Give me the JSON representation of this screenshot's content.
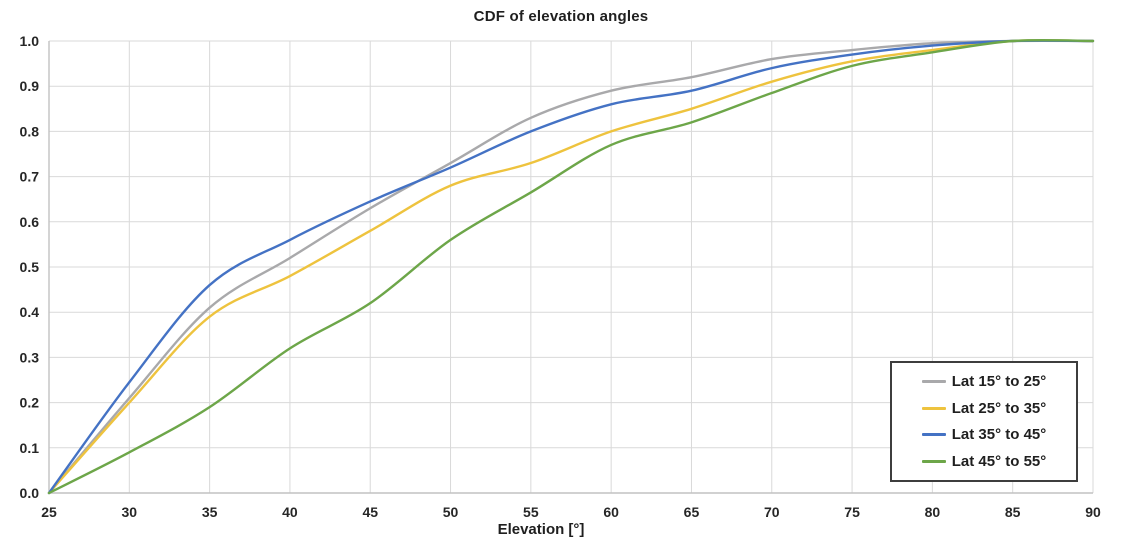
{
  "figure": {
    "title": "CDF of elevation angles",
    "x_axis_label": "Elevation [°]"
  },
  "chart_data": {
    "type": "line",
    "title": "CDF of elevation angles",
    "xlabel": "Elevation [°]",
    "ylabel": "",
    "xlim": [
      25,
      90
    ],
    "ylim": [
      0.0,
      1.0
    ],
    "x_tick_labels": [
      "25",
      "30",
      "35",
      "40",
      "45",
      "50",
      "55",
      "60",
      "65",
      "70",
      "75",
      "80",
      "85",
      "90"
    ],
    "y_tick_labels": [
      "0.0",
      "0.1",
      "0.2",
      "0.3",
      "0.4",
      "0.5",
      "0.6",
      "0.7",
      "0.8",
      "0.9",
      "1.0"
    ],
    "grid": true,
    "legend_position": "inset lower right",
    "x": [
      25,
      30,
      35,
      40,
      45,
      50,
      55,
      60,
      65,
      70,
      75,
      80,
      85,
      90
    ],
    "series": [
      {
        "name": "Lat 15° to 25°",
        "color": "#a9a9ab",
        "values": [
          0,
          0.21,
          0.41,
          0.52,
          0.63,
          0.73,
          0.83,
          0.89,
          0.92,
          0.96,
          0.98,
          0.995,
          1.0,
          1.0
        ]
      },
      {
        "name": "Lat 25° to 35°",
        "color": "#eec33e",
        "values": [
          0,
          0.2,
          0.39,
          0.48,
          0.58,
          0.68,
          0.73,
          0.8,
          0.85,
          0.91,
          0.955,
          0.98,
          1.0,
          1.0
        ]
      },
      {
        "name": "Lat 35° to 45°",
        "color": "#4472c4",
        "values": [
          0,
          0.245,
          0.46,
          0.56,
          0.645,
          0.72,
          0.8,
          0.86,
          0.89,
          0.94,
          0.97,
          0.99,
          1.0,
          1.0
        ]
      },
      {
        "name": "Lat 45° to 55°",
        "color": "#6da649",
        "values": [
          0,
          0.09,
          0.19,
          0.32,
          0.42,
          0.56,
          0.665,
          0.77,
          0.82,
          0.885,
          0.945,
          0.975,
          1.0,
          1.0
        ]
      }
    ]
  }
}
